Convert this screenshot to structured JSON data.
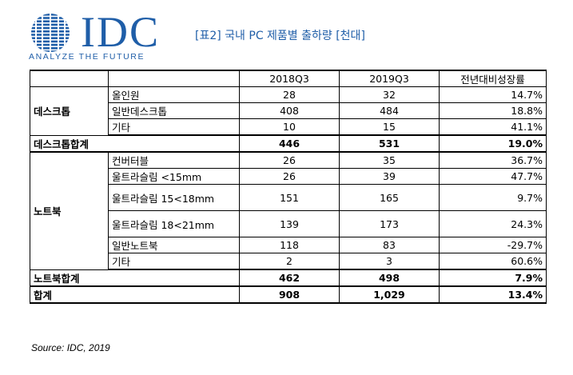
{
  "logo": {
    "brand": "IDC",
    "tagline": "ANALYZE THE FUTURE",
    "color": "#1f5ea8"
  },
  "title": "[표2] 국내 PC 제품별 출하량 [천대]",
  "table": {
    "headers": [
      "2018Q3",
      "2019Q3",
      "전년대비성장률"
    ],
    "desktop": {
      "group_label": "데스크톱",
      "rows": [
        {
          "label": "올인원",
          "y2018": "28",
          "y2019": "32",
          "growth": "14.7%"
        },
        {
          "label": "일반데스크톱",
          "y2018": "408",
          "y2019": "484",
          "growth": "18.8%"
        },
        {
          "label": "기타",
          "y2018": "10",
          "y2019": "15",
          "growth": "41.1%"
        }
      ],
      "total": {
        "label": "데스크톱합계",
        "y2018": "446",
        "y2019": "531",
        "growth": "19.0%"
      }
    },
    "notebook": {
      "group_label": "노트북",
      "rows": [
        {
          "label": "컨버터블",
          "y2018": "26",
          "y2019": "35",
          "growth": "36.7%"
        },
        {
          "label": "울트라슬림 <15mm",
          "y2018": "26",
          "y2019": "39",
          "growth": "47.7%"
        },
        {
          "label": "울트라슬림 15<18mm",
          "y2018": "151",
          "y2019": "165",
          "growth": "9.7%"
        },
        {
          "label": "울트라슬림 18<21mm",
          "y2018": "139",
          "y2019": "173",
          "growth": "24.3%"
        },
        {
          "label": "일반노트북",
          "y2018": "118",
          "y2019": "83",
          "growth": "-29.7%"
        },
        {
          "label": "기타",
          "y2018": "2",
          "y2019": "3",
          "growth": "60.6%"
        }
      ],
      "total": {
        "label": "노트북합계",
        "y2018": "462",
        "y2019": "498",
        "growth": "7.9%"
      }
    },
    "grand_total": {
      "label": "합계",
      "y2018": "908",
      "y2019": "1,029",
      "growth": "13.4%"
    }
  },
  "source": "Source: IDC, 2019"
}
